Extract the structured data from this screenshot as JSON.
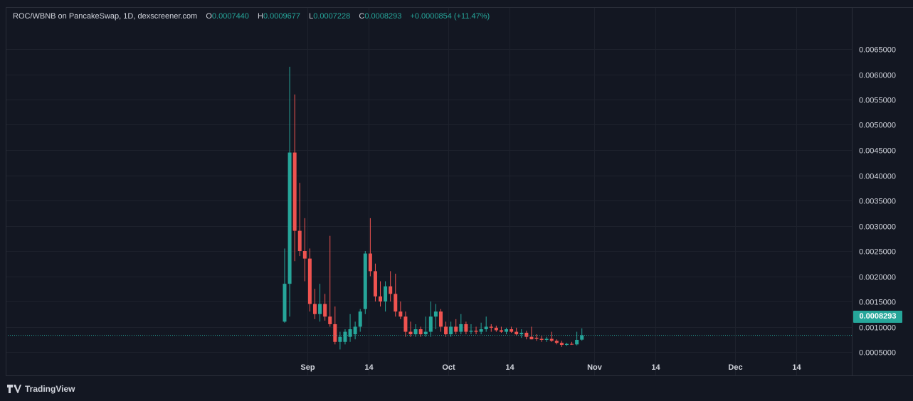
{
  "legend": {
    "title": "ROC/WBNB on PancakeSwap, 1D, dexscreener.com",
    "open_label": "O",
    "open_value": "0.0007440",
    "high_label": "H",
    "high_value": "0.0009677",
    "low_label": "L",
    "low_value": "0.0007228",
    "close_label": "C",
    "close_value": "0.0008293",
    "change": "+0.0000854 (+11.47%)"
  },
  "last_price": "0.0008293",
  "footer": {
    "brand": "TradingView"
  },
  "colors": {
    "up": "#26a69a",
    "down": "#ef5350",
    "background": "#131722",
    "grid": "#1e222d"
  },
  "chart_data": {
    "type": "candlestick",
    "title": "ROC/WBNB on PancakeSwap, 1D, dexscreener.com",
    "ylim": [
      0,
      0.0068
    ],
    "y_ticks": [
      "0.0065000",
      "0.0060000",
      "0.0055000",
      "0.0050000",
      "0.0045000",
      "0.0040000",
      "0.0035000",
      "0.0030000",
      "0.0025000",
      "0.0020000",
      "0.0015000",
      "0.0010000",
      "0.0005000"
    ],
    "x_ticks": [
      "Sep",
      "14",
      "Oct",
      "14",
      "Nov",
      "14",
      "Dec",
      "14"
    ],
    "grid": true,
    "candles": [
      {
        "date": "Aug 28",
        "o": 0.0011,
        "h": 0.00255,
        "l": 0.00108,
        "c": 0.00185
      },
      {
        "date": "Aug 29",
        "o": 0.00185,
        "h": 0.00615,
        "l": 0.0012,
        "c": 0.00445
      },
      {
        "date": "Aug 30",
        "o": 0.00445,
        "h": 0.0056,
        "l": 0.0023,
        "c": 0.0029
      },
      {
        "date": "Aug 31",
        "o": 0.0029,
        "h": 0.00385,
        "l": 0.0024,
        "c": 0.0025
      },
      {
        "date": "Sep 1",
        "o": 0.0025,
        "h": 0.00315,
        "l": 0.0019,
        "c": 0.00235
      },
      {
        "date": "Sep 2",
        "o": 0.00235,
        "h": 0.00255,
        "l": 0.0013,
        "c": 0.00145
      },
      {
        "date": "Sep 3",
        "o": 0.00145,
        "h": 0.00175,
        "l": 0.00115,
        "c": 0.00125
      },
      {
        "date": "Sep 4",
        "o": 0.00125,
        "h": 0.00185,
        "l": 0.0011,
        "c": 0.00145
      },
      {
        "date": "Sep 5",
        "o": 0.00145,
        "h": 0.00165,
        "l": 0.00112,
        "c": 0.0012
      },
      {
        "date": "Sep 6",
        "o": 0.0012,
        "h": 0.0028,
        "l": 0.001,
        "c": 0.00105
      },
      {
        "date": "Sep 7",
        "o": 0.00105,
        "h": 0.0014,
        "l": 0.00065,
        "c": 0.0007
      },
      {
        "date": "Sep 8",
        "o": 0.0007,
        "h": 0.0009,
        "l": 0.00055,
        "c": 0.0008
      },
      {
        "date": "Sep 9",
        "o": 0.0007,
        "h": 0.00095,
        "l": 0.00065,
        "c": 0.0009
      },
      {
        "date": "Sep 10",
        "o": 0.0008,
        "h": 0.00125,
        "l": 0.0007,
        "c": 0.00095
      },
      {
        "date": "Sep 11",
        "o": 0.00085,
        "h": 0.0011,
        "l": 0.00075,
        "c": 0.001
      },
      {
        "date": "Sep 12",
        "o": 0.001,
        "h": 0.00135,
        "l": 0.0009,
        "c": 0.0013
      },
      {
        "date": "Sep 13",
        "o": 0.00135,
        "h": 0.0025,
        "l": 0.00125,
        "c": 0.00245
      },
      {
        "date": "Sep 14",
        "o": 0.00245,
        "h": 0.00315,
        "l": 0.002,
        "c": 0.0021
      },
      {
        "date": "Sep 15",
        "o": 0.0021,
        "h": 0.00225,
        "l": 0.0015,
        "c": 0.0016
      },
      {
        "date": "Sep 16",
        "o": 0.0016,
        "h": 0.0019,
        "l": 0.0014,
        "c": 0.0015
      },
      {
        "date": "Sep 17",
        "o": 0.0015,
        "h": 0.0019,
        "l": 0.0013,
        "c": 0.0018
      },
      {
        "date": "Sep 18",
        "o": 0.0018,
        "h": 0.0021,
        "l": 0.0015,
        "c": 0.00165
      },
      {
        "date": "Sep 19",
        "o": 0.00165,
        "h": 0.00205,
        "l": 0.0012,
        "c": 0.0013
      },
      {
        "date": "Sep 20",
        "o": 0.0013,
        "h": 0.0015,
        "l": 0.00115,
        "c": 0.0012
      },
      {
        "date": "Sep 21",
        "o": 0.0012,
        "h": 0.0013,
        "l": 0.0008,
        "c": 0.0009
      },
      {
        "date": "Sep 22",
        "o": 0.0009,
        "h": 0.0011,
        "l": 0.0008,
        "c": 0.00085
      },
      {
        "date": "Sep 23",
        "o": 0.00085,
        "h": 0.00105,
        "l": 0.0008,
        "c": 0.00095
      },
      {
        "date": "Sep 24",
        "o": 0.00095,
        "h": 0.001,
        "l": 0.0008,
        "c": 0.00085
      },
      {
        "date": "Sep 25",
        "o": 0.00085,
        "h": 0.0012,
        "l": 0.0008,
        "c": 0.0009
      },
      {
        "date": "Sep 26",
        "o": 0.0009,
        "h": 0.0015,
        "l": 0.0008,
        "c": 0.0012
      },
      {
        "date": "Sep 27",
        "o": 0.0012,
        "h": 0.00145,
        "l": 0.00095,
        "c": 0.0013
      },
      {
        "date": "Sep 28",
        "o": 0.0013,
        "h": 0.00135,
        "l": 0.0009,
        "c": 0.001
      },
      {
        "date": "Sep 29",
        "o": 0.001,
        "h": 0.0011,
        "l": 0.0008,
        "c": 0.00085
      },
      {
        "date": "Sep 30",
        "o": 0.00085,
        "h": 0.0011,
        "l": 0.0008,
        "c": 0.001
      },
      {
        "date": "Oct 1",
        "o": 0.001,
        "h": 0.00115,
        "l": 0.00085,
        "c": 0.0009
      },
      {
        "date": "Oct 2",
        "o": 0.0009,
        "h": 0.00125,
        "l": 0.00085,
        "c": 0.00105
      },
      {
        "date": "Oct 3",
        "o": 0.00105,
        "h": 0.0011,
        "l": 0.00085,
        "c": 0.0009
      },
      {
        "date": "Oct 4",
        "o": 0.0009,
        "h": 0.00105,
        "l": 0.00085,
        "c": 0.00092
      },
      {
        "date": "Oct 5",
        "o": 0.00092,
        "h": 0.001,
        "l": 0.00085,
        "c": 0.0009
      },
      {
        "date": "Oct 6",
        "o": 0.0009,
        "h": 0.00108,
        "l": 0.00085,
        "c": 0.00095
      },
      {
        "date": "Oct 7",
        "o": 0.00095,
        "h": 0.0012,
        "l": 0.0009,
        "c": 0.001
      },
      {
        "date": "Oct 8",
        "o": 0.001,
        "h": 0.00105,
        "l": 0.0009,
        "c": 0.00098
      },
      {
        "date": "Oct 9",
        "o": 0.00098,
        "h": 0.00102,
        "l": 0.0009,
        "c": 0.00093
      },
      {
        "date": "Oct 10",
        "o": 0.00093,
        "h": 0.001,
        "l": 0.00088,
        "c": 0.0009
      },
      {
        "date": "Oct 11",
        "o": 0.0009,
        "h": 0.00098,
        "l": 0.00085,
        "c": 0.00095
      },
      {
        "date": "Oct 12",
        "o": 0.00095,
        "h": 0.001,
        "l": 0.00088,
        "c": 0.0009
      },
      {
        "date": "Oct 13",
        "o": 0.0009,
        "h": 0.00098,
        "l": 0.00082,
        "c": 0.00085
      },
      {
        "date": "Oct 14",
        "o": 0.00085,
        "h": 0.00095,
        "l": 0.00078,
        "c": 0.00088
      },
      {
        "date": "Oct 15",
        "o": 0.00088,
        "h": 0.00092,
        "l": 0.00075,
        "c": 0.0008
      },
      {
        "date": "Oct 16",
        "o": 0.0008,
        "h": 0.001,
        "l": 0.00075,
        "c": 0.00075
      },
      {
        "date": "Oct 17",
        "o": 0.00078,
        "h": 0.00085,
        "l": 0.00072,
        "c": 0.00076
      },
      {
        "date": "Oct 18",
        "o": 0.00076,
        "h": 0.00082,
        "l": 0.0007,
        "c": 0.00074
      },
      {
        "date": "Oct 19",
        "o": 0.00074,
        "h": 0.0008,
        "l": 0.0007,
        "c": 0.00076
      },
      {
        "date": "Oct 20",
        "o": 0.00076,
        "h": 0.0009,
        "l": 0.0007,
        "c": 0.00072
      },
      {
        "date": "Oct 21",
        "o": 0.00072,
        "h": 0.00075,
        "l": 0.00065,
        "c": 0.00068
      },
      {
        "date": "Oct 22",
        "o": 0.00068,
        "h": 0.00072,
        "l": 0.0006,
        "c": 0.00064
      },
      {
        "date": "Oct 23",
        "o": 0.00064,
        "h": 0.00068,
        "l": 0.00062,
        "c": 0.00066
      },
      {
        "date": "Oct 24",
        "o": 0.00066,
        "h": 0.0007,
        "l": 0.00064,
        "c": 0.00065
      },
      {
        "date": "Oct 25",
        "o": 0.00065,
        "h": 0.0009,
        "l": 0.00063,
        "c": 0.00074
      },
      {
        "date": "Oct 26",
        "o": 0.000744,
        "h": 0.0009677,
        "l": 0.0007228,
        "c": 0.0008293
      }
    ]
  }
}
